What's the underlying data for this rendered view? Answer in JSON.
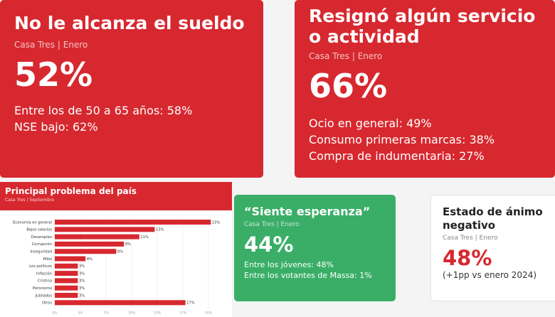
{
  "card1": {
    "title": "No le alcanza el sueldo",
    "subtitle": "Casa Tres | Enero",
    "value": "52%",
    "lines": [
      "Entre los de 50 a 65 años: 58%",
      "NSE bajo: 62%"
    ]
  },
  "card2": {
    "title": "Resignó algún servicio o actividad",
    "subtitle": "Casa Tres | Enero",
    "value": "66%",
    "lines": [
      "Ocio en general: 49%",
      "Consumo primeras marcas: 38%",
      "Compra de indumentaria: 27%"
    ]
  },
  "card3": {
    "title": "Principal problema del país",
    "subtitle": "Casa Tres | Septiembre"
  },
  "card4": {
    "title": "“Siente esperanza”",
    "subtitle": "Casa Tres | Enero",
    "value": "44%",
    "lines": [
      "Entre los jóvenes: 48%",
      "Entre los votantes de Massa: 1%"
    ]
  },
  "card5": {
    "title": "Estado de ánimo negativo",
    "subtitle": "Casa Tres | Enero",
    "value": "48%",
    "note": "(+1pp vs enero 2024)"
  },
  "colors": {
    "red": "#d7282f",
    "green": "#3aae67",
    "bar": "#d7282f"
  },
  "chart_data": {
    "type": "bar",
    "orientation": "horizontal",
    "title": "Principal problema del país",
    "subtitle": "Casa Tres | Septiembre",
    "categories": [
      "Economía en general",
      "Bajos salarios",
      "Desempleo",
      "Corrupción",
      "Inseguridad",
      "Milei",
      "Los políticos",
      "Inflación",
      "Cristina",
      "Peronismo",
      "Jubilados",
      "Otros"
    ],
    "values": [
      23,
      13,
      11,
      9,
      8,
      4,
      3,
      3,
      3,
      3,
      3,
      17
    ],
    "value_labels": [
      "23%",
      "13%",
      "11%",
      "9%",
      "8%",
      "4%",
      "3%",
      "3%",
      "3%",
      "3%",
      "3%",
      "17%"
    ],
    "xlim": [
      0,
      20
    ],
    "x_ticks": [
      "0%",
      "3%",
      "7%",
      "10%",
      "13%",
      "17%",
      "20%"
    ],
    "x_tick_values": [
      0,
      3.33,
      6.67,
      10,
      13.33,
      16.67,
      20
    ]
  }
}
